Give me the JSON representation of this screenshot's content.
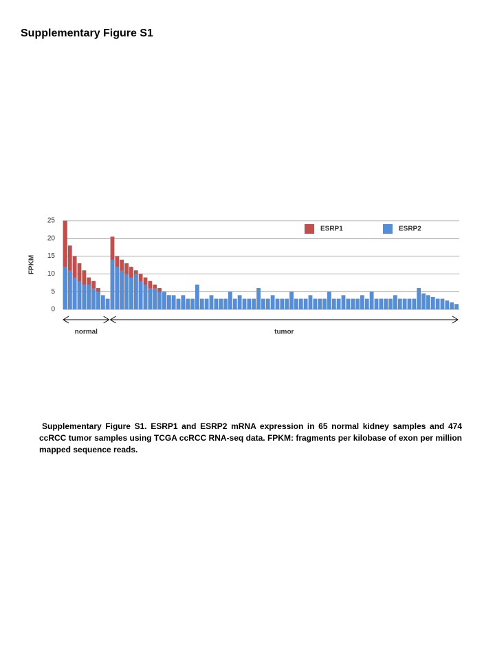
{
  "title": "Supplementary Figure S1",
  "chart_data": {
    "type": "bar",
    "y_label": "FPKM",
    "ylim": [
      0,
      25
    ],
    "yticks": [
      0,
      5,
      10,
      15,
      20,
      25
    ],
    "grid": true,
    "overlap": true,
    "groups": [
      {
        "label": "normal",
        "size": 10
      },
      {
        "label": "tumor",
        "size": 74
      }
    ],
    "series": [
      {
        "name": "ESRP1",
        "color": "#c0504d",
        "values": [
          25,
          18,
          15,
          13,
          11,
          9,
          8,
          6,
          3,
          1,
          20.5,
          15,
          14,
          13,
          12,
          11,
          10,
          9,
          8,
          7,
          6,
          5,
          4,
          3,
          2.5,
          2,
          1.5,
          1,
          1,
          0.8,
          0.5,
          0.5,
          0.5,
          0.5,
          0.5,
          0.5,
          0.5,
          0.5,
          0.5,
          0.5,
          0.5,
          0.5,
          0.5,
          0.5,
          0.5,
          0.5,
          0.5,
          0.5,
          0.5,
          0.5,
          0.5,
          0.5,
          0.5,
          0.5,
          0.5,
          0.5,
          0.5,
          0.5,
          0.5,
          0.5,
          0.5,
          0.5,
          0.5,
          0.5,
          0.5,
          0.5,
          0.5,
          0.5,
          0.5,
          0.5,
          0.5,
          0.5,
          0.5,
          0.5,
          0.5,
          0.5,
          0.5,
          0.5,
          0.5,
          0.5,
          0.5,
          0.5,
          0.5,
          0.5
        ]
      },
      {
        "name": "ESRP2",
        "color": "#558ed5",
        "values": [
          12,
          11,
          9,
          8,
          7,
          7,
          6,
          5,
          4,
          3,
          14,
          12,
          11,
          10,
          9,
          10,
          8,
          7,
          6,
          6,
          5,
          5,
          4,
          4,
          3,
          4,
          3,
          3,
          7,
          3,
          3,
          4,
          3,
          3,
          3,
          5,
          3,
          4,
          3,
          3,
          3,
          6,
          3,
          3,
          4,
          3,
          3,
          3,
          5,
          3,
          3,
          3,
          4,
          3,
          3,
          3,
          5,
          3,
          3,
          4,
          3,
          3,
          3,
          4,
          3,
          5,
          3,
          3,
          3,
          3,
          4,
          3,
          3,
          3,
          3,
          6,
          4.5,
          4,
          3.5,
          3,
          3,
          2.5,
          2,
          1.5
        ]
      }
    ]
  },
  "caption": "Supplementary Figure S1. ESRP1 and ESRP2 mRNA expression in 65 normal kidney samples and 474 ccRCC tumor samples using TCGA ccRCC RNA-seq data. FPKM: fragments per kilobase of exon per million mapped sequence reads."
}
